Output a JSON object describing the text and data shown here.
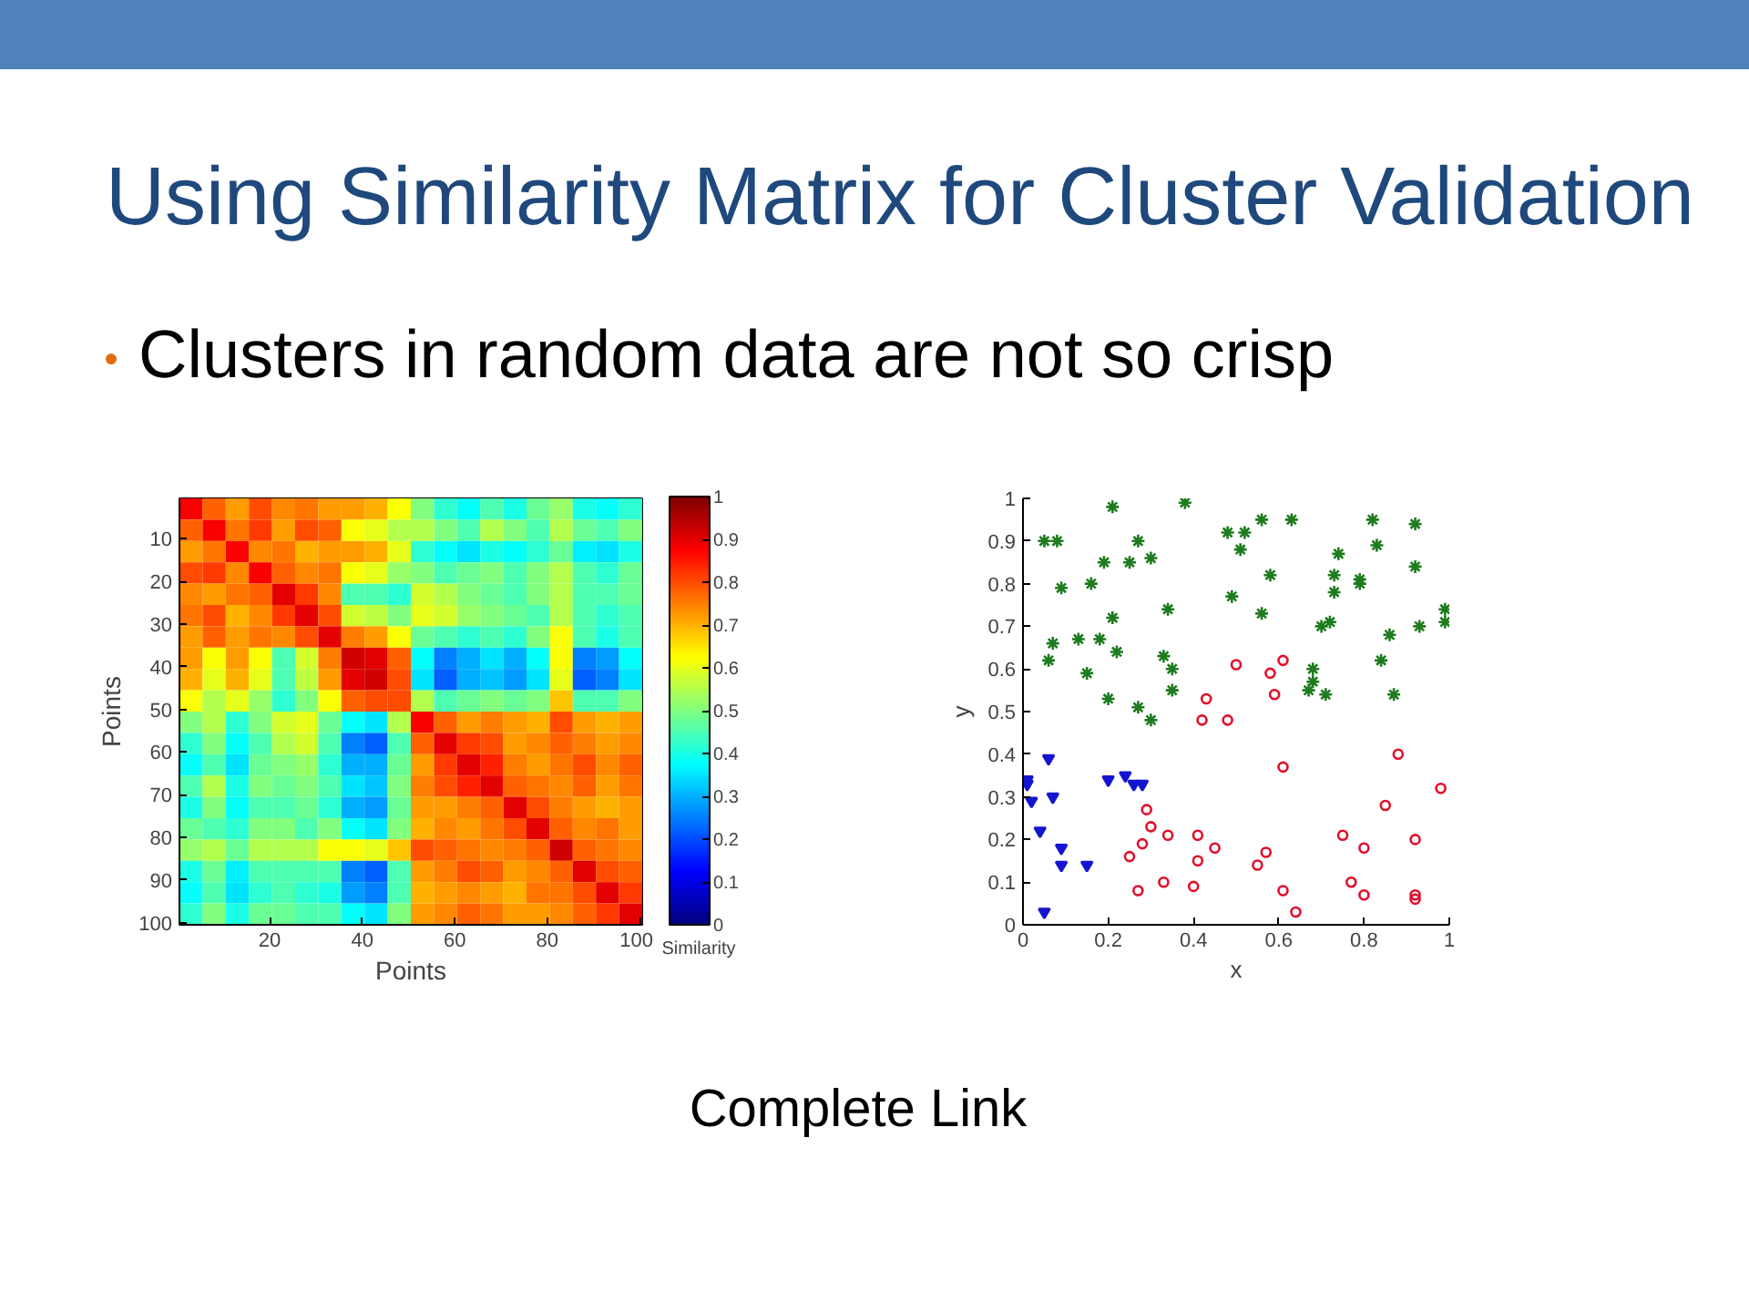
{
  "chart_data": [
    {
      "type": "heatmap",
      "title": "Using Similarity Matrix for Cluster Validation",
      "subtitle": "Clusters in random data are not so crisp",
      "annotations": [
        "Complete Link"
      ],
      "xlabel": "Points",
      "ylabel": "Points",
      "clabel": "Similarity",
      "xlim": [
        0.5,
        100.5
      ],
      "ylim": [
        100.5,
        0.5
      ],
      "xticks": [
        20,
        40,
        60,
        80,
        100
      ],
      "yticks": [
        10,
        20,
        30,
        40,
        50,
        60,
        70,
        80,
        90,
        100
      ],
      "clim": [
        0,
        1
      ],
      "cticks": [
        0,
        0.1,
        0.2,
        0.3,
        0.4,
        0.5,
        0.6,
        0.7,
        0.8,
        0.9,
        1
      ],
      "cells": [
        [
          0.88,
          0.78,
          0.72,
          0.8,
          0.74,
          0.76,
          0.72,
          0.72,
          0.7,
          0.62,
          0.5,
          0.42,
          0.38,
          0.45,
          0.4,
          0.48,
          0.52,
          0.4,
          0.38,
          0.42
        ],
        [
          0.78,
          0.88,
          0.76,
          0.82,
          0.72,
          0.8,
          0.78,
          0.62,
          0.6,
          0.55,
          0.55,
          0.5,
          0.45,
          0.55,
          0.5,
          0.45,
          0.55,
          0.48,
          0.45,
          0.5
        ],
        [
          0.72,
          0.76,
          0.88,
          0.74,
          0.76,
          0.7,
          0.72,
          0.72,
          0.7,
          0.6,
          0.42,
          0.38,
          0.35,
          0.4,
          0.38,
          0.42,
          0.48,
          0.36,
          0.35,
          0.4
        ],
        [
          0.8,
          0.82,
          0.74,
          0.88,
          0.78,
          0.74,
          0.76,
          0.62,
          0.6,
          0.52,
          0.5,
          0.45,
          0.48,
          0.5,
          0.45,
          0.5,
          0.55,
          0.45,
          0.42,
          0.48
        ],
        [
          0.74,
          0.72,
          0.76,
          0.78,
          0.9,
          0.82,
          0.74,
          0.45,
          0.45,
          0.42,
          0.58,
          0.55,
          0.5,
          0.48,
          0.45,
          0.5,
          0.55,
          0.45,
          0.45,
          0.48
        ],
        [
          0.76,
          0.8,
          0.7,
          0.74,
          0.82,
          0.9,
          0.8,
          0.58,
          0.56,
          0.5,
          0.6,
          0.58,
          0.52,
          0.5,
          0.48,
          0.45,
          0.55,
          0.45,
          0.42,
          0.45
        ],
        [
          0.72,
          0.78,
          0.72,
          0.76,
          0.74,
          0.8,
          0.9,
          0.75,
          0.72,
          0.62,
          0.48,
          0.45,
          0.42,
          0.45,
          0.42,
          0.5,
          0.62,
          0.45,
          0.4,
          0.45
        ],
        [
          0.72,
          0.62,
          0.72,
          0.62,
          0.45,
          0.58,
          0.75,
          0.92,
          0.9,
          0.78,
          0.38,
          0.25,
          0.3,
          0.35,
          0.3,
          0.38,
          0.62,
          0.25,
          0.28,
          0.38
        ],
        [
          0.7,
          0.6,
          0.7,
          0.6,
          0.45,
          0.56,
          0.72,
          0.9,
          0.92,
          0.8,
          0.35,
          0.22,
          0.3,
          0.32,
          0.28,
          0.35,
          0.6,
          0.22,
          0.25,
          0.35
        ],
        [
          0.62,
          0.55,
          0.6,
          0.52,
          0.42,
          0.5,
          0.62,
          0.78,
          0.8,
          0.8,
          0.55,
          0.45,
          0.48,
          0.5,
          0.48,
          0.5,
          0.68,
          0.45,
          0.45,
          0.5
        ],
        [
          0.5,
          0.55,
          0.42,
          0.5,
          0.58,
          0.6,
          0.48,
          0.38,
          0.35,
          0.55,
          0.88,
          0.78,
          0.72,
          0.75,
          0.72,
          0.7,
          0.8,
          0.72,
          0.7,
          0.72
        ],
        [
          0.42,
          0.5,
          0.38,
          0.45,
          0.55,
          0.58,
          0.45,
          0.25,
          0.22,
          0.45,
          0.78,
          0.9,
          0.82,
          0.8,
          0.72,
          0.74,
          0.78,
          0.75,
          0.72,
          0.74
        ],
        [
          0.38,
          0.45,
          0.35,
          0.48,
          0.5,
          0.52,
          0.42,
          0.3,
          0.3,
          0.48,
          0.72,
          0.82,
          0.9,
          0.84,
          0.75,
          0.72,
          0.76,
          0.8,
          0.74,
          0.78
        ],
        [
          0.45,
          0.55,
          0.4,
          0.5,
          0.48,
          0.5,
          0.45,
          0.35,
          0.32,
          0.5,
          0.75,
          0.8,
          0.84,
          0.9,
          0.78,
          0.76,
          0.74,
          0.78,
          0.72,
          0.76
        ],
        [
          0.4,
          0.5,
          0.38,
          0.45,
          0.45,
          0.48,
          0.42,
          0.3,
          0.28,
          0.48,
          0.72,
          0.72,
          0.75,
          0.78,
          0.9,
          0.8,
          0.75,
          0.72,
          0.7,
          0.72
        ],
        [
          0.48,
          0.45,
          0.42,
          0.5,
          0.5,
          0.45,
          0.5,
          0.38,
          0.35,
          0.5,
          0.7,
          0.74,
          0.72,
          0.76,
          0.8,
          0.9,
          0.78,
          0.74,
          0.76,
          0.72
        ],
        [
          0.52,
          0.55,
          0.48,
          0.55,
          0.55,
          0.55,
          0.62,
          0.62,
          0.6,
          0.68,
          0.8,
          0.78,
          0.76,
          0.74,
          0.75,
          0.78,
          0.92,
          0.78,
          0.76,
          0.74
        ],
        [
          0.4,
          0.48,
          0.36,
          0.45,
          0.45,
          0.45,
          0.45,
          0.25,
          0.22,
          0.45,
          0.72,
          0.75,
          0.8,
          0.78,
          0.72,
          0.74,
          0.78,
          0.9,
          0.8,
          0.78
        ],
        [
          0.38,
          0.45,
          0.35,
          0.42,
          0.45,
          0.42,
          0.4,
          0.28,
          0.25,
          0.45,
          0.7,
          0.72,
          0.74,
          0.72,
          0.7,
          0.76,
          0.76,
          0.8,
          0.9,
          0.82
        ],
        [
          0.42,
          0.5,
          0.4,
          0.48,
          0.48,
          0.45,
          0.45,
          0.38,
          0.35,
          0.5,
          0.72,
          0.74,
          0.78,
          0.76,
          0.72,
          0.72,
          0.74,
          0.78,
          0.82,
          0.9
        ]
      ]
    },
    {
      "type": "scatter",
      "xlabel": "x",
      "ylabel": "y",
      "xlim": [
        0,
        1
      ],
      "ylim": [
        0,
        1
      ],
      "xticks": [
        0,
        0.2,
        0.4,
        0.6,
        0.8,
        1
      ],
      "yticks": [
        0,
        0.1,
        0.2,
        0.3,
        0.4,
        0.5,
        0.6,
        0.7,
        0.8,
        0.9,
        1
      ],
      "series": [
        {
          "color": "#1e7b1e",
          "marker": "cross",
          "x": [
            0.05,
            0.08,
            0.21,
            0.38,
            0.09,
            0.16,
            0.19,
            0.25,
            0.27,
            0.3,
            0.21,
            0.34,
            0.07,
            0.06,
            0.13,
            0.18,
            0.22,
            0.15,
            0.2,
            0.27,
            0.3,
            0.33,
            0.35,
            0.35,
            0.48,
            0.52,
            0.51,
            0.56,
            0.63,
            0.58,
            0.49,
            0.56,
            0.7,
            0.72,
            0.73,
            0.73,
            0.74,
            0.79,
            0.79,
            0.82,
            0.83,
            0.92,
            0.92,
            0.86,
            0.84,
            0.93,
            0.99,
            0.99,
            0.68,
            0.68,
            0.67,
            0.71,
            0.87
          ],
          "values": [
            0.9,
            0.9,
            0.98,
            0.99,
            0.79,
            0.8,
            0.85,
            0.85,
            0.9,
            0.86,
            0.72,
            0.74,
            0.66,
            0.62,
            0.67,
            0.67,
            0.64,
            0.59,
            0.53,
            0.51,
            0.48,
            0.63,
            0.6,
            0.55,
            0.92,
            0.92,
            0.88,
            0.95,
            0.95,
            0.82,
            0.77,
            0.73,
            0.7,
            0.71,
            0.82,
            0.78,
            0.87,
            0.81,
            0.8,
            0.95,
            0.89,
            0.94,
            0.84,
            0.68,
            0.62,
            0.7,
            0.74,
            0.71,
            0.6,
            0.57,
            0.55,
            0.54,
            0.54
          ]
        },
        {
          "color": "#e0102a",
          "marker": "circle",
          "x": [
            0.5,
            0.61,
            0.58,
            0.59,
            0.43,
            0.42,
            0.48,
            0.61,
            0.29,
            0.3,
            0.34,
            0.28,
            0.25,
            0.41,
            0.41,
            0.45,
            0.57,
            0.55,
            0.27,
            0.33,
            0.4,
            0.61,
            0.64,
            0.75,
            0.8,
            0.77,
            0.8,
            0.85,
            0.88,
            0.92,
            0.92,
            0.92,
            0.98
          ],
          "values": [
            0.61,
            0.62,
            0.59,
            0.54,
            0.53,
            0.48,
            0.48,
            0.37,
            0.27,
            0.23,
            0.21,
            0.19,
            0.16,
            0.21,
            0.15,
            0.18,
            0.17,
            0.14,
            0.08,
            0.1,
            0.09,
            0.08,
            0.03,
            0.21,
            0.18,
            0.1,
            0.07,
            0.28,
            0.4,
            0.2,
            0.06,
            0.07,
            0.32
          ]
        },
        {
          "color": "#1515d0",
          "marker": "triangle",
          "x": [
            0.01,
            0.01,
            0.02,
            0.06,
            0.07,
            0.04,
            0.09,
            0.09,
            0.15,
            0.05,
            0.2,
            0.24,
            0.26,
            0.28
          ],
          "values": [
            0.33,
            0.34,
            0.29,
            0.39,
            0.3,
            0.22,
            0.18,
            0.14,
            0.14,
            0.03,
            0.34,
            0.35,
            0.33,
            0.33
          ]
        }
      ]
    }
  ]
}
